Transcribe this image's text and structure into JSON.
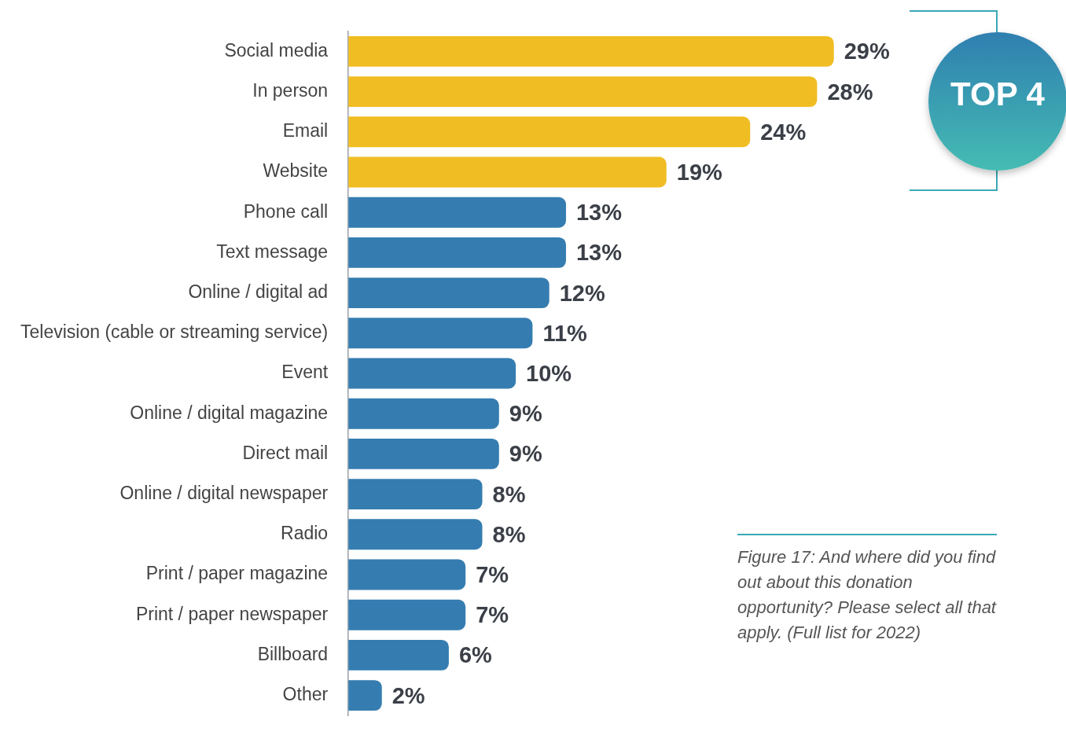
{
  "chart_data": {
    "type": "bar",
    "orientation": "horizontal",
    "categories": [
      "Social media",
      "In person",
      "Email",
      "Website",
      "Phone call",
      "Text message",
      "Online / digital ad",
      "Television (cable or streaming service)",
      "Event",
      "Online / digital magazine",
      "Direct mail",
      "Online / digital newspaper",
      "Radio",
      "Print / paper magazine",
      "Print / paper newspaper",
      "Billboard",
      "Other"
    ],
    "values": [
      29,
      28,
      24,
      19,
      13,
      13,
      12,
      11,
      10,
      9,
      9,
      8,
      8,
      7,
      7,
      6,
      2
    ],
    "value_labels": [
      "29%",
      "28%",
      "24%",
      "19%",
      "13%",
      "13%",
      "12%",
      "11%",
      "10%",
      "9%",
      "9%",
      "8%",
      "8%",
      "7%",
      "7%",
      "6%",
      "2%"
    ],
    "colors": [
      "#f0bd22",
      "#f0bd22",
      "#f0bd22",
      "#f0bd22",
      "#357db0",
      "#357db0",
      "#357db0",
      "#357db0",
      "#357db0",
      "#357db0",
      "#357db0",
      "#357db0",
      "#357db0",
      "#357db0",
      "#357db0",
      "#357db0",
      "#357db0"
    ],
    "annotations": [
      "TOP 4",
      "Figure 17: And where did you find out about this donation opportunity? Please select all that apply. (Full list for 2022)"
    ],
    "legend": false
  }
}
